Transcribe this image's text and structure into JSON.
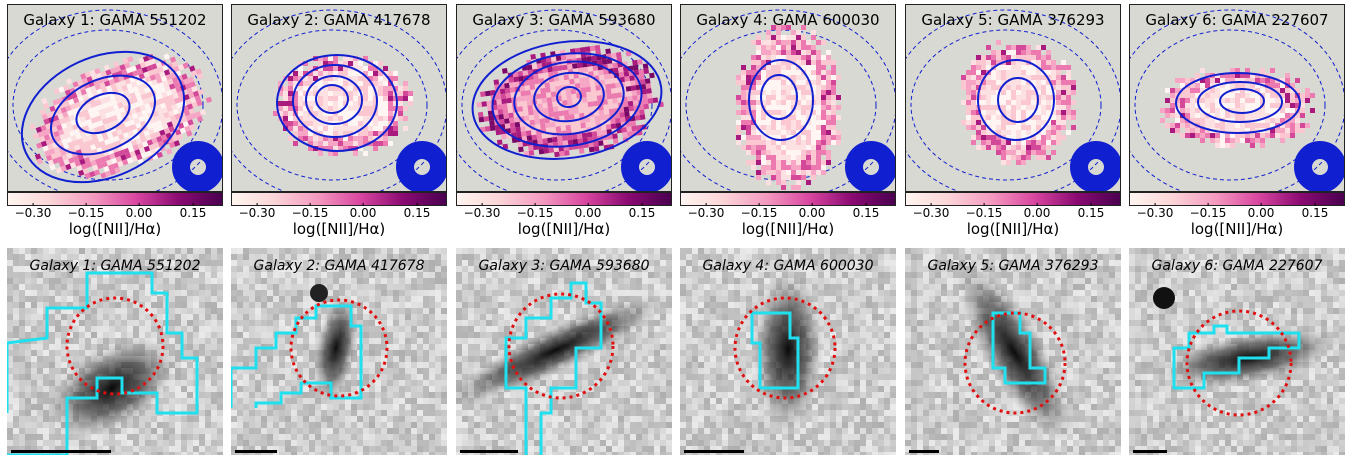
{
  "colorbar": {
    "ticks": [
      "−0.30",
      "−0.15",
      "0.00",
      "0.15"
    ],
    "label": "log([NII]/Hα)"
  },
  "colors": {
    "contour": "#1020d0",
    "aperture": "#e01010",
    "region": "#20e0f0",
    "map_bg": "#d9d9d3"
  },
  "galaxies": [
    {
      "map_title": "Galaxy 1:  GAMA 551202",
      "image_title": "Galaxy 1:  GAMA 551202"
    },
    {
      "map_title": "Galaxy 2:  GAMA 417678",
      "image_title": "Galaxy 2:  GAMA 417678"
    },
    {
      "map_title": "Galaxy 3:  GAMA 593680",
      "image_title": "Galaxy 3:  GAMA 593680"
    },
    {
      "map_title": "Galaxy 4:  GAMA 600030",
      "image_title": "Galaxy 4:  GAMA 600030"
    },
    {
      "map_title": "Galaxy 5:  GAMA 376293",
      "image_title": "Galaxy 5:  GAMA 376293"
    },
    {
      "map_title": "Galaxy 6:  GAMA 227607",
      "image_title": "Galaxy 6:  GAMA 227607"
    }
  ]
}
